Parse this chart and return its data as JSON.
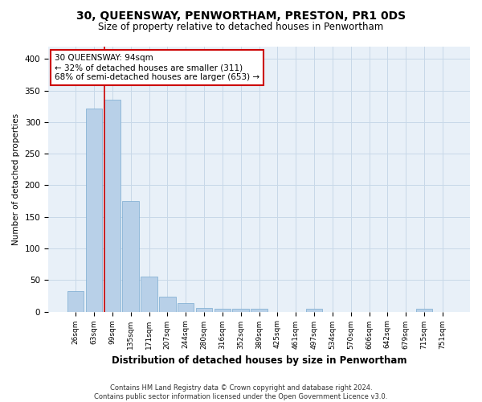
{
  "title": "30, QUEENSWAY, PENWORTHAM, PRESTON, PR1 0DS",
  "subtitle": "Size of property relative to detached houses in Penwortham",
  "xlabel": "Distribution of detached houses by size in Penwortham",
  "ylabel": "Number of detached properties",
  "categories": [
    "26sqm",
    "63sqm",
    "99sqm",
    "135sqm",
    "171sqm",
    "207sqm",
    "244sqm",
    "280sqm",
    "316sqm",
    "352sqm",
    "389sqm",
    "425sqm",
    "461sqm",
    "497sqm",
    "534sqm",
    "570sqm",
    "606sqm",
    "642sqm",
    "679sqm",
    "715sqm",
    "751sqm"
  ],
  "values": [
    33,
    322,
    335,
    175,
    55,
    23,
    13,
    6,
    5,
    5,
    5,
    0,
    0,
    4,
    0,
    0,
    0,
    0,
    0,
    4,
    0
  ],
  "bar_color": "#b8d0e8",
  "bar_edge_color": "#7aaad0",
  "grid_color": "#c8d8e8",
  "bg_color": "#e8f0f8",
  "red_line_bar_index": 2,
  "annotation_text": "30 QUEENSWAY: 94sqm\n← 32% of detached houses are smaller (311)\n68% of semi-detached houses are larger (653) →",
  "annotation_box_color": "#ffffff",
  "annotation_box_edge": "#cc0000",
  "red_line_color": "#cc0000",
  "ylim": [
    0,
    420
  ],
  "yticks": [
    0,
    50,
    100,
    150,
    200,
    250,
    300,
    350,
    400
  ],
  "footer_line1": "Contains HM Land Registry data © Crown copyright and database right 2024.",
  "footer_line2": "Contains public sector information licensed under the Open Government Licence v3.0."
}
